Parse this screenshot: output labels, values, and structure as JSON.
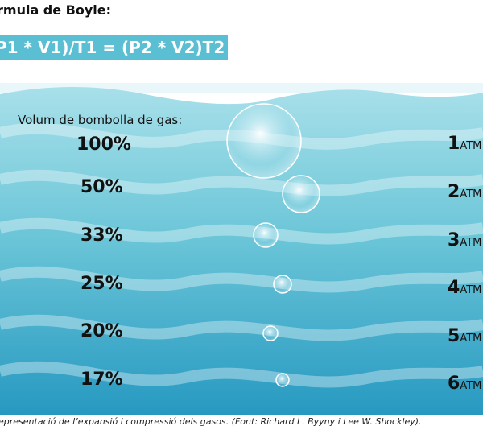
{
  "title": "rmula de Boyle:",
  "formula": "P1 * V1)/T1 = (P2 * V2)T2",
  "bubble_caption": "Volum de bombolla de gas:",
  "levels": [
    {
      "percent": "100%",
      "atm_number": "1",
      "atm_unit": "ATM"
    },
    {
      "percent": "50%",
      "atm_number": "2",
      "atm_unit": "ATM"
    },
    {
      "percent": "33%",
      "atm_number": "3",
      "atm_unit": "ATM"
    },
    {
      "percent": "25%",
      "atm_number": "4",
      "atm_unit": "ATM"
    },
    {
      "percent": "20%",
      "atm_number": "5",
      "atm_unit": "ATM"
    },
    {
      "percent": "17%",
      "atm_number": "6",
      "atm_unit": "ATM"
    }
  ],
  "footnote": "epresentació de l’expansió i compressió dels gasos. (Font: Richard L. Byyny i Lee W. Shockley).",
  "colors": {
    "formula_bg": "#5bbfd3",
    "water_light": "#9fdde8",
    "water_deep": "#2aa0c4"
  }
}
